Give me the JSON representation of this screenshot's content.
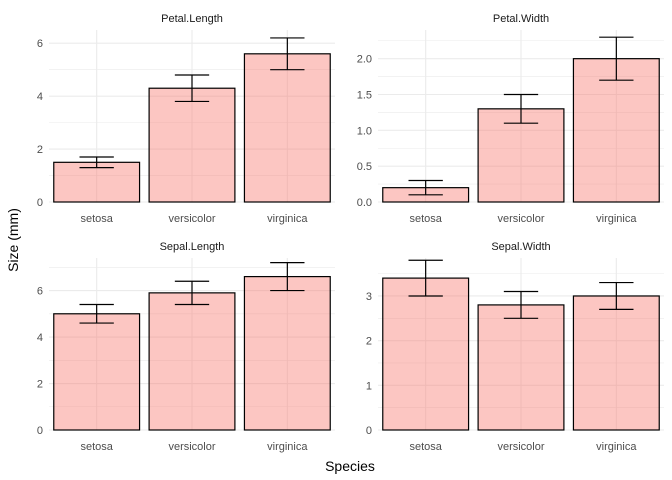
{
  "chart_data": {
    "type": "bar",
    "xlabel": "Species",
    "ylabel": "Size (mm)",
    "colors": {
      "bar_fill": "#f8766d",
      "bar_fill_opacity": 0.42,
      "bar_stroke": "#000000",
      "grid": "#ebebeb"
    },
    "panels": [
      {
        "title": "Petal.Length",
        "categories": [
          "setosa",
          "versicolor",
          "virginica"
        ],
        "values": [
          1.5,
          4.3,
          5.6
        ],
        "error_low": [
          1.3,
          3.8,
          5.0
        ],
        "error_high": [
          1.7,
          4.8,
          6.2
        ],
        "ylim": [
          0,
          6.5
        ],
        "yticks": [
          0,
          2,
          4,
          6
        ]
      },
      {
        "title": "Petal.Width",
        "categories": [
          "setosa",
          "versicolor",
          "virginica"
        ],
        "values": [
          0.2,
          1.3,
          2.0
        ],
        "error_low": [
          0.1,
          1.1,
          1.7
        ],
        "error_high": [
          0.3,
          1.5,
          2.3
        ],
        "ylim": [
          0,
          2.4
        ],
        "yticks": [
          0.0,
          0.5,
          1.0,
          1.5,
          2.0
        ]
      },
      {
        "title": "Sepal.Length",
        "categories": [
          "setosa",
          "versicolor",
          "virginica"
        ],
        "values": [
          5.0,
          5.9,
          6.6
        ],
        "error_low": [
          4.6,
          5.4,
          6.0
        ],
        "error_high": [
          5.4,
          6.4,
          7.2
        ],
        "ylim": [
          0,
          7.4
        ],
        "yticks": [
          0,
          2,
          4,
          6
        ]
      },
      {
        "title": "Sepal.Width",
        "categories": [
          "setosa",
          "versicolor",
          "virginica"
        ],
        "values": [
          3.4,
          2.8,
          3.0
        ],
        "error_low": [
          3.0,
          2.5,
          2.7
        ],
        "error_high": [
          3.8,
          3.1,
          3.3
        ],
        "ylim": [
          0,
          3.85
        ],
        "yticks": [
          0,
          1,
          2,
          3
        ]
      }
    ]
  }
}
